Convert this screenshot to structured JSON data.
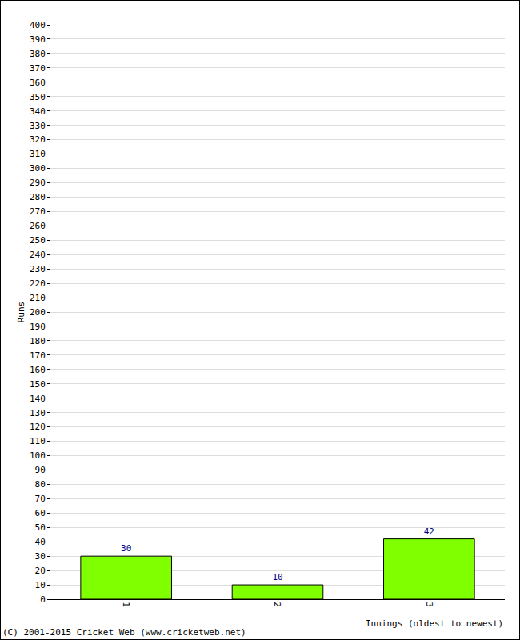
{
  "chart_data": {
    "type": "bar",
    "x_label": "Innings (oldest to newest)",
    "y_label": "Runs",
    "annotations": [
      "(C) 2001-2015 Cricket Web (www.cricketweb.net)"
    ],
    "categories": [
      "1",
      "2",
      "3"
    ],
    "values": [
      30,
      10,
      42
    ],
    "color": "#80ff00",
    "ylim": [
      0,
      400
    ],
    "yticks": [
      0,
      10,
      20,
      30,
      40,
      50,
      60,
      70,
      80,
      90,
      100,
      110,
      120,
      130,
      140,
      150,
      160,
      170,
      180,
      190,
      200,
      210,
      220,
      230,
      240,
      250,
      260,
      270,
      280,
      290,
      300,
      310,
      320,
      330,
      340,
      350,
      360,
      370,
      380,
      390,
      400
    ],
    "grid": true,
    "data_labels": true
  }
}
